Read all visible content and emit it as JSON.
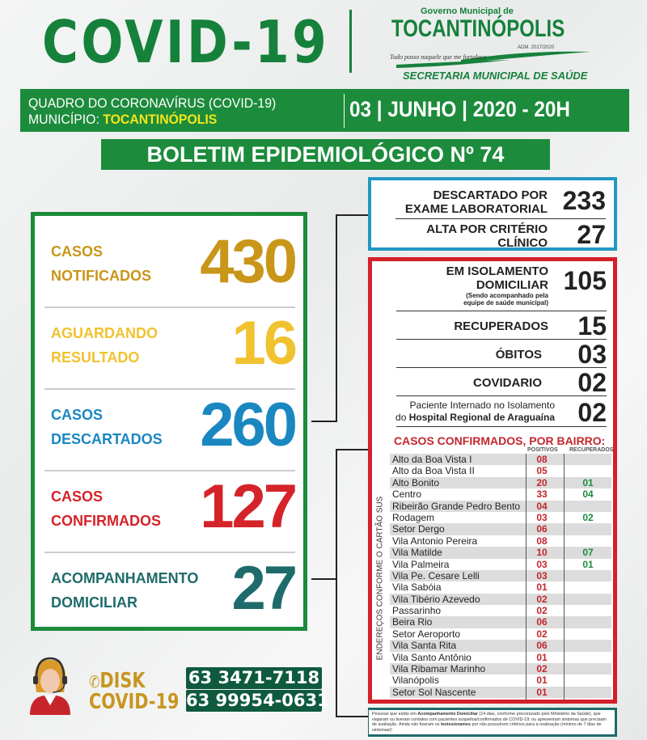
{
  "header": {
    "title": "COVID-19",
    "logo": {
      "government": "Governo Municipal de",
      "city": "TOCANTINÓPOLIS",
      "admin": "ADM. 2017/2020",
      "motto": "Tudo posso naquele que me fortalece",
      "secretariat": "SECRETARIA MUNICIPAL DE SAÚDE"
    }
  },
  "info_bar": {
    "line1": "QUADRO DO CORONAVÍRUS (COVID-19)",
    "municipio_label": "MUNICÍPIO: ",
    "municipio": "TOCANTINÓPOLIS",
    "date": "03 | JUNHO | 2020 - 20H"
  },
  "bulletin": "BOLETIM EPIDEMIOLÓGICO Nº 74",
  "summary": [
    {
      "line1": "CASOS",
      "line2": "NOTIFICADOS",
      "value": "430",
      "color": "#c9961a"
    },
    {
      "line1": "AGUARDANDO",
      "line2": "RESULTADO",
      "value": "16",
      "color": "#f1c22f"
    },
    {
      "line1": "CASOS",
      "line2": "DESCARTADOS",
      "value": "260",
      "color": "#1a87c1"
    },
    {
      "line1": "CASOS",
      "line2": "CONFIRMADOS",
      "value": "127",
      "color": "#d5232a"
    },
    {
      "line1": "ACOMPANHAMENTO",
      "line2": "DOMICILIAR",
      "value": "27",
      "color": "#1f6b6b"
    }
  ],
  "discarded": [
    {
      "line1": "DESCARTADO POR",
      "line2": "EXAME LABORATORIAL",
      "value": "233"
    },
    {
      "line1": "ALTA POR CRITÉRIO",
      "line2": "CLÍNICO",
      "value": "27"
    }
  ],
  "confirmed": {
    "isolation": {
      "line1": "EM ISOLAMENTO",
      "line2": "DOMICILIAR",
      "note1": "(Sendo acompanhado pela",
      "note2": "equipe de saúde municipal)",
      "value": "105"
    },
    "recovered": {
      "label": "RECUPERADOS",
      "value": "15"
    },
    "deaths": {
      "label": "ÓBITOS",
      "value": "03"
    },
    "covidario": {
      "label": "COVIDARIO",
      "value": "02"
    },
    "hospital": {
      "line1": "Paciente Internado no Isolamento",
      "line2_prefix": "do ",
      "line2_bold": "Hospital Regional de Araguaína",
      "value": "02"
    }
  },
  "neighborhoods": {
    "title": "CASOS CONFIRMADOS, POR BAIRRO:",
    "col_positive": "POSITIVOS",
    "col_recovered": "RECUPERADOS",
    "side_label": "ENDEREÇOS CONFORME O CARTÃO SUS",
    "rows": [
      {
        "name": "Alto da Boa Vista I",
        "pos": "08",
        "rec": ""
      },
      {
        "name": "Alto da Boa Vista II",
        "pos": "05",
        "rec": ""
      },
      {
        "name": "Alto Bonito",
        "pos": "20",
        "rec": "01"
      },
      {
        "name": "Centro",
        "pos": "33",
        "rec": "04"
      },
      {
        "name": "Ribeirão Grande Pedro Bento",
        "pos": "04",
        "rec": ""
      },
      {
        "name": "Rodagem",
        "pos": "03",
        "rec": "02"
      },
      {
        "name": "Setor Dergo",
        "pos": "06",
        "rec": ""
      },
      {
        "name": "Vila Antonio Pereira",
        "pos": "08",
        "rec": ""
      },
      {
        "name": "Vila Matilde",
        "pos": "10",
        "rec": "07"
      },
      {
        "name": "Vila Palmeira",
        "pos": "03",
        "rec": "01"
      },
      {
        "name": "Vila Pe. Cesare Lelli",
        "pos": "03",
        "rec": ""
      },
      {
        "name": "Vila Sabóia",
        "pos": "01",
        "rec": ""
      },
      {
        "name": "Vila Tibério Azevedo",
        "pos": "02",
        "rec": ""
      },
      {
        "name": "Passarinho",
        "pos": "02",
        "rec": ""
      },
      {
        "name": "Beira Rio",
        "pos": "06",
        "rec": ""
      },
      {
        "name": "Setor Aeroporto",
        "pos": "02",
        "rec": ""
      },
      {
        "name": "Vila Santa Rita",
        "pos": "06",
        "rec": ""
      },
      {
        "name": "Vila Santo Antônio",
        "pos": "01",
        "rec": ""
      },
      {
        "name": "Vila Ribamar Marinho",
        "pos": "02",
        "rec": ""
      },
      {
        "name": "Vilanópolis",
        "pos": "01",
        "rec": ""
      },
      {
        "name": "Setor Sol Nascente",
        "pos": "01",
        "rec": ""
      }
    ]
  },
  "footnote": {
    "p1": "Pessoas que estão em ",
    "b1": "Acompanhamento Domiciliar",
    "p2": " (14 dias, conforme preconizado pelo Ministério da Saúde), que viajaram ou tiveram contatos com pacientes suspeitos/confirmados de COVID-19; ou apresentam sintomas que precisam de avaliação. Ainda não fizeram os ",
    "b2": "testes/exames",
    "p3": " por não possuírem critérios para a realização (mínimo de 7 dias de sintomas)!"
  },
  "hotline": {
    "line1": "DISK",
    "line2": "COVID-19",
    "phones": [
      "63 3471-7118",
      "63 99954-0631"
    ],
    "icon": "phone-icon"
  }
}
